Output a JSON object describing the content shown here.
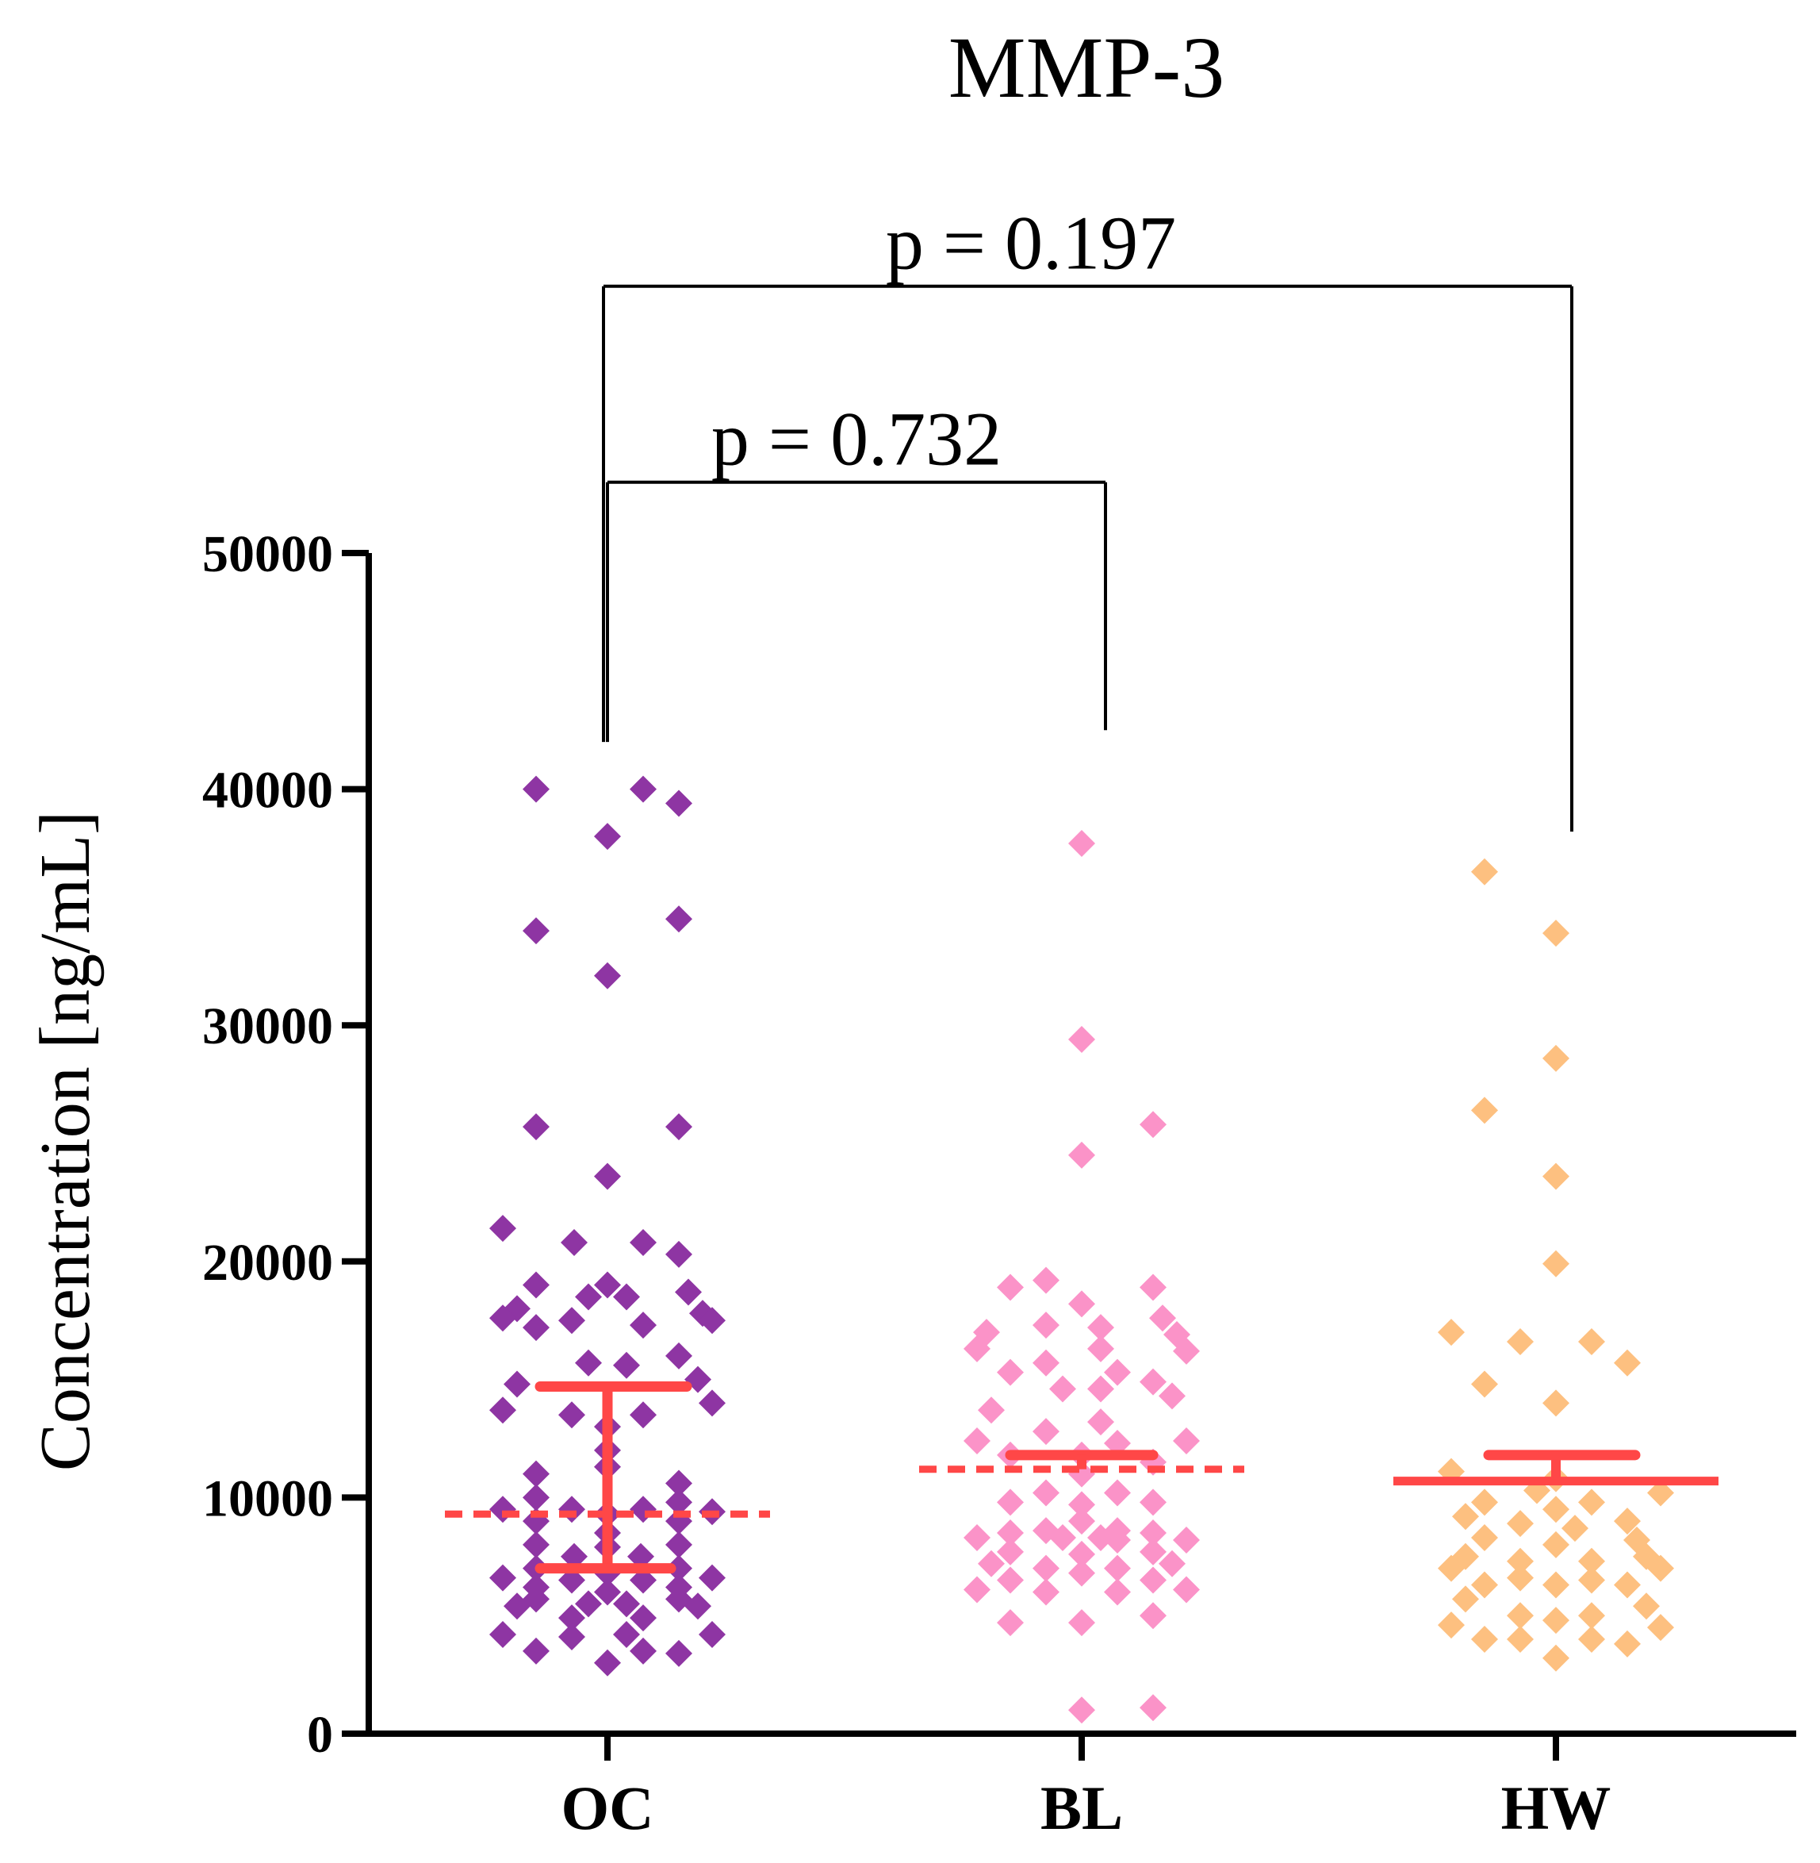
{
  "chart_data": {
    "type": "scatter",
    "title": "MMP-3",
    "xlabel": "",
    "ylabel": "Concentration [ng/mL]",
    "ylim": [
      0,
      50000
    ],
    "yticks": [
      "0",
      "10000",
      "20000",
      "30000",
      "40000",
      "50000"
    ],
    "categories": [
      "OC",
      "BL",
      "HW"
    ],
    "colors": {
      "OC": "#8e35a3",
      "BL": "#fb93c8",
      "HW": "#fdc080",
      "stat": "#ff4747",
      "axis": "#000000"
    },
    "series": [
      {
        "name": "OC",
        "points": [
          [
            -0.15,
            40000
          ],
          [
            0.075,
            40000
          ],
          [
            0.15,
            39400
          ],
          [
            0,
            38000
          ],
          [
            -0.15,
            34000
          ],
          [
            0.15,
            34500
          ],
          [
            0,
            32100
          ],
          [
            -0.15,
            25700
          ],
          [
            0.15,
            25700
          ],
          [
            0,
            23600
          ],
          [
            -0.22,
            21400
          ],
          [
            -0.07,
            20800
          ],
          [
            0.075,
            20800
          ],
          [
            0.15,
            20300
          ],
          [
            -0.15,
            19000
          ],
          [
            0,
            19000
          ],
          [
            -0.04,
            18500
          ],
          [
            0.04,
            18500
          ],
          [
            0.17,
            18700
          ],
          [
            -0.19,
            18000
          ],
          [
            -0.22,
            17600
          ],
          [
            0.2,
            17800
          ],
          [
            0.22,
            17500
          ],
          [
            -0.15,
            17200
          ],
          [
            0.075,
            17300
          ],
          [
            -0.075,
            17500
          ],
          [
            -0.04,
            15700
          ],
          [
            0.04,
            15600
          ],
          [
            0.15,
            16000
          ],
          [
            -0.19,
            14800
          ],
          [
            0.19,
            15000
          ],
          [
            -0.22,
            13700
          ],
          [
            0.22,
            14000
          ],
          [
            -0.075,
            13500
          ],
          [
            0.075,
            13500
          ],
          [
            0,
            13000
          ],
          [
            0,
            12000
          ],
          [
            0,
            11300
          ],
          [
            -0.15,
            11000
          ],
          [
            0.15,
            10600
          ],
          [
            -0.15,
            10000
          ],
          [
            0.15,
            9800
          ],
          [
            -0.22,
            9500
          ],
          [
            0.22,
            9400
          ],
          [
            -0.075,
            9500
          ],
          [
            0.075,
            9500
          ],
          [
            0,
            9300
          ],
          [
            -0.15,
            9000
          ],
          [
            0.15,
            9000
          ],
          [
            0,
            8500
          ],
          [
            -0.15,
            8000
          ],
          [
            0.15,
            8000
          ],
          [
            0,
            7900
          ],
          [
            -0.07,
            7500
          ],
          [
            0.07,
            7500
          ],
          [
            -0.15,
            7000
          ],
          [
            0.15,
            7000
          ],
          [
            0,
            6800
          ],
          [
            -0.22,
            6600
          ],
          [
            0.22,
            6600
          ],
          [
            -0.075,
            6500
          ],
          [
            0.075,
            6500
          ],
          [
            -0.15,
            6200
          ],
          [
            0.15,
            6200
          ],
          [
            0,
            6000
          ],
          [
            -0.15,
            5700
          ],
          [
            0.15,
            5700
          ],
          [
            -0.19,
            5400
          ],
          [
            0.19,
            5400
          ],
          [
            -0.04,
            5500
          ],
          [
            0.04,
            5500
          ],
          [
            -0.075,
            4900
          ],
          [
            0.075,
            4900
          ],
          [
            -0.22,
            4200
          ],
          [
            0.22,
            4200
          ],
          [
            -0.075,
            4100
          ],
          [
            0.04,
            4200
          ],
          [
            -0.15,
            3500
          ],
          [
            0.075,
            3500
          ],
          [
            0.15,
            3400
          ],
          [
            0,
            3000
          ]
        ],
        "median": 9300,
        "iqr": [
          7000,
          14700
        ]
      },
      {
        "name": "BL",
        "points": [
          [
            0,
            37700
          ],
          [
            0,
            29400
          ],
          [
            0.15,
            25800
          ],
          [
            0,
            24500
          ],
          [
            -0.15,
            18900
          ],
          [
            -0.075,
            19200
          ],
          [
            0.15,
            18900
          ],
          [
            0,
            18200
          ],
          [
            0.17,
            17600
          ],
          [
            -0.2,
            17000
          ],
          [
            0.2,
            16900
          ],
          [
            -0.075,
            17300
          ],
          [
            0.04,
            17200
          ],
          [
            -0.22,
            16300
          ],
          [
            0.22,
            16200
          ],
          [
            0.04,
            16300
          ],
          [
            -0.075,
            15700
          ],
          [
            -0.15,
            15300
          ],
          [
            0.075,
            15300
          ],
          [
            0.15,
            14900
          ],
          [
            -0.04,
            14600
          ],
          [
            0.04,
            14600
          ],
          [
            0.19,
            14300
          ],
          [
            -0.19,
            13700
          ],
          [
            0.04,
            13200
          ],
          [
            -0.075,
            12800
          ],
          [
            0.075,
            12300
          ],
          [
            -0.22,
            12400
          ],
          [
            0.22,
            12400
          ],
          [
            0,
            11800
          ],
          [
            -0.15,
            11800
          ],
          [
            0.15,
            11500
          ],
          [
            0,
            11000
          ],
          [
            -0.075,
            10200
          ],
          [
            0.075,
            10200
          ],
          [
            -0.15,
            9800
          ],
          [
            0.15,
            9800
          ],
          [
            0,
            9700
          ],
          [
            0,
            9000
          ],
          [
            -0.075,
            8600
          ],
          [
            0.075,
            8600
          ],
          [
            -0.15,
            8500
          ],
          [
            0.15,
            8500
          ],
          [
            -0.22,
            8300
          ],
          [
            0.22,
            8200
          ],
          [
            -0.04,
            8300
          ],
          [
            0.04,
            8300
          ],
          [
            0.075,
            8200
          ],
          [
            -0.15,
            7700
          ],
          [
            0.15,
            7700
          ],
          [
            0,
            7600
          ],
          [
            -0.19,
            7200
          ],
          [
            0.19,
            7200
          ],
          [
            -0.075,
            7000
          ],
          [
            0.075,
            7000
          ],
          [
            0,
            6800
          ],
          [
            -0.15,
            6500
          ],
          [
            0.15,
            6500
          ],
          [
            -0.22,
            6100
          ],
          [
            0.22,
            6100
          ],
          [
            -0.075,
            6000
          ],
          [
            0.075,
            6000
          ],
          [
            -0.15,
            4700
          ],
          [
            0,
            4700
          ],
          [
            0.15,
            5000
          ],
          [
            0,
            1000
          ],
          [
            0.15,
            1100
          ]
        ],
        "median": 11200,
        "iqr": [
          11200,
          11800
        ]
      },
      {
        "name": "HW",
        "points": [
          [
            -0.15,
            36500
          ],
          [
            0,
            33900
          ],
          [
            0,
            28600
          ],
          [
            -0.15,
            26400
          ],
          [
            0,
            23600
          ],
          [
            0,
            19900
          ],
          [
            -0.22,
            17000
          ],
          [
            -0.075,
            16600
          ],
          [
            0.075,
            16600
          ],
          [
            0.15,
            15700
          ],
          [
            -0.15,
            14800
          ],
          [
            0,
            14000
          ],
          [
            -0.22,
            11100
          ],
          [
            0,
            10800
          ],
          [
            -0.04,
            10300
          ],
          [
            0.22,
            10200
          ],
          [
            -0.15,
            9800
          ],
          [
            0.075,
            9800
          ],
          [
            0,
            9500
          ],
          [
            -0.19,
            9200
          ],
          [
            0.15,
            9000
          ],
          [
            -0.075,
            8900
          ],
          [
            0.04,
            8700
          ],
          [
            -0.15,
            8300
          ],
          [
            0.17,
            8200
          ],
          [
            0,
            8000
          ],
          [
            -0.19,
            7500
          ],
          [
            0.19,
            7500
          ],
          [
            -0.075,
            7300
          ],
          [
            0.075,
            7300
          ],
          [
            -0.22,
            7000
          ],
          [
            0.22,
            7000
          ],
          [
            -0.075,
            6600
          ],
          [
            0.075,
            6500
          ],
          [
            -0.15,
            6300
          ],
          [
            0,
            6300
          ],
          [
            0.15,
            6300
          ],
          [
            -0.19,
            5700
          ],
          [
            0.19,
            5400
          ],
          [
            -0.075,
            5000
          ],
          [
            0.075,
            5000
          ],
          [
            0,
            4800
          ],
          [
            -0.22,
            4600
          ],
          [
            0.22,
            4500
          ],
          [
            -0.15,
            4000
          ],
          [
            -0.075,
            4000
          ],
          [
            0.075,
            4000
          ],
          [
            0.15,
            3800
          ],
          [
            0,
            3200
          ]
        ],
        "median": 10700,
        "iqr": [
          10700,
          11800
        ]
      }
    ],
    "brackets": [
      {
        "from": "OC",
        "to": "BL",
        "label": "p = 0.732",
        "y": 53000,
        "left_drop": 42000,
        "right_drop": 42500
      },
      {
        "from": "OC",
        "to": "HW",
        "label": "p = 0.197",
        "y": 61300,
        "left_drop": 42000,
        "right_drop": 38200
      }
    ]
  }
}
